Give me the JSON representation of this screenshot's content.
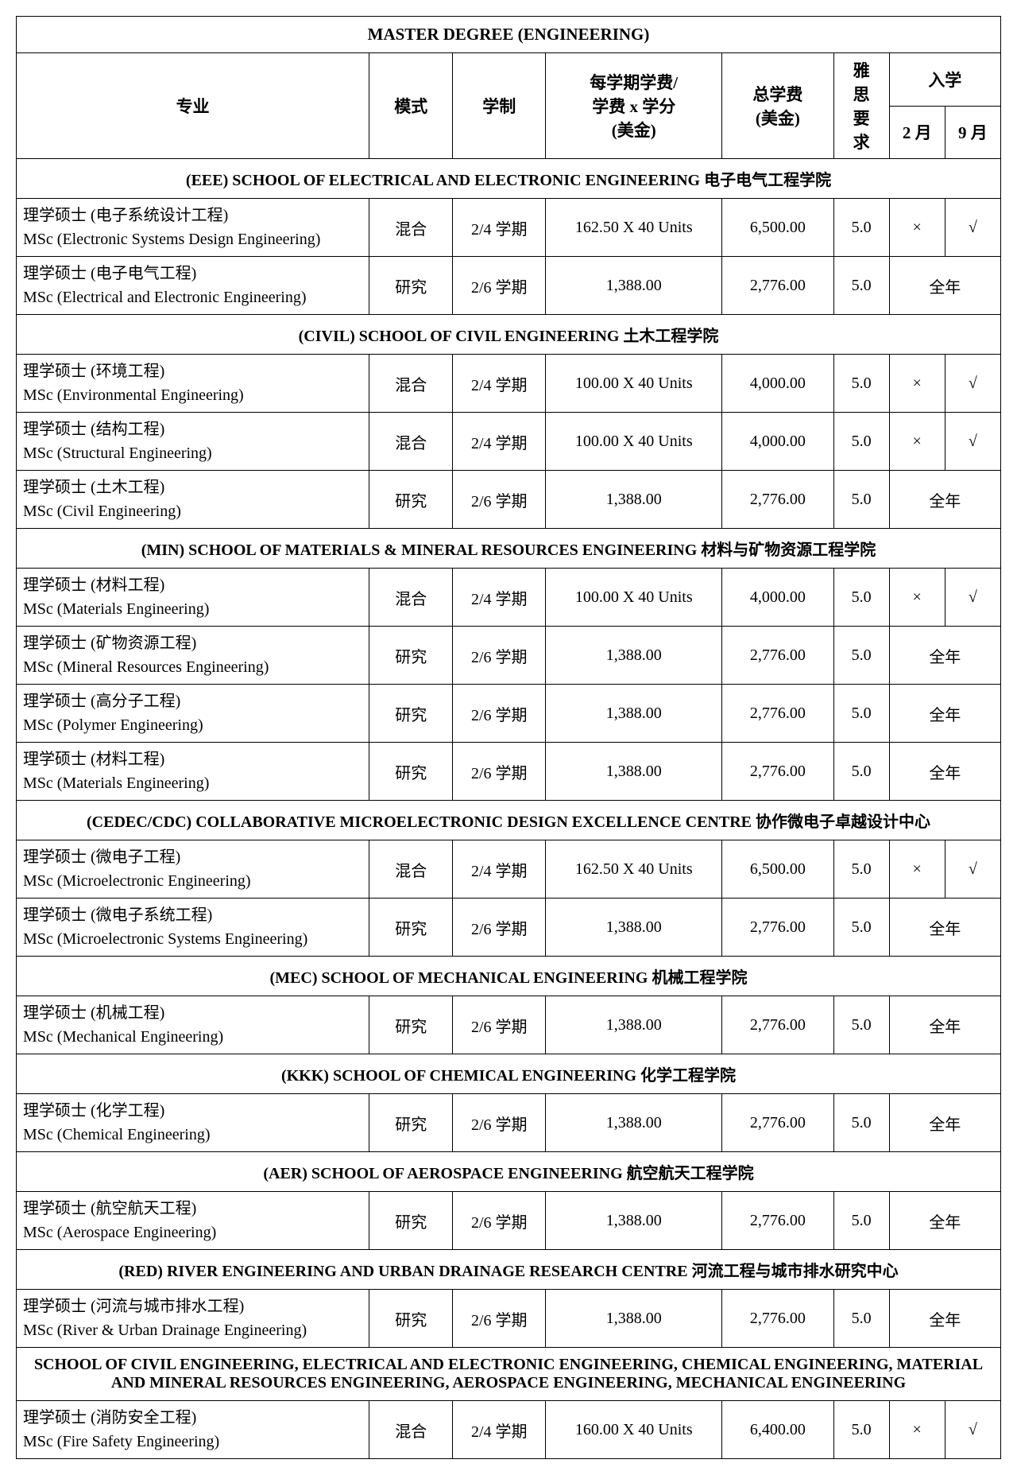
{
  "title": "MASTER DEGREE (ENGINEERING)",
  "headers": {
    "major": "专业",
    "mode": "模式",
    "duration": "学制",
    "fee_per_sem_line1": "每学期学费/",
    "fee_per_sem_line2": "学费 x 学分",
    "fee_per_sem_line3": "(美金)",
    "total_fee_line1": "总学费",
    "total_fee_line2": "(美金)",
    "ielts": "雅思要求",
    "intake": "入学",
    "feb": "2 月",
    "sep": "9 月"
  },
  "sections": [
    {
      "label": "(EEE) SCHOOL OF ELECTRICAL AND ELECTRONIC ENGINEERING  电子电气工程学院",
      "rows": [
        {
          "prog_cn": "理学硕士 (电子系统设计工程)",
          "prog_en": "MSc (Electronic Systems Design Engineering)",
          "mode": "混合",
          "dur": "2/4 学期",
          "fee": "162.50 X 40 Units",
          "total": "6,500.00",
          "ielts": "5.0",
          "feb": "×",
          "sep": "√",
          "full_year": false
        },
        {
          "prog_cn": "理学硕士 (电子电气工程)",
          "prog_en": "MSc (Electrical and Electronic Engineering)",
          "mode": "研究",
          "dur": "2/6 学期",
          "fee": "1,388.00",
          "total": "2,776.00",
          "ielts": "5.0",
          "full_year": true,
          "full_year_label": "全年"
        }
      ]
    },
    {
      "label": "(CIVIL) SCHOOL OF CIVIL ENGINEERING  土木工程学院",
      "rows": [
        {
          "prog_cn": "理学硕士 (环境工程)",
          "prog_en": "MSc (Environmental Engineering)",
          "mode": "混合",
          "dur": "2/4 学期",
          "fee": "100.00 X 40 Units",
          "total": "4,000.00",
          "ielts": "5.0",
          "feb": "×",
          "sep": "√",
          "full_year": false
        },
        {
          "prog_cn": "理学硕士 (结构工程)",
          "prog_en": "MSc (Structural Engineering)",
          "mode": "混合",
          "dur": "2/4 学期",
          "fee": "100.00 X 40 Units",
          "total": "4,000.00",
          "ielts": "5.0",
          "feb": "×",
          "sep": "√",
          "full_year": false
        },
        {
          "prog_cn": "理学硕士 (土木工程)",
          "prog_en": "MSc (Civil Engineering)",
          "mode": "研究",
          "dur": "2/6 学期",
          "fee": "1,388.00",
          "total": "2,776.00",
          "ielts": "5.0",
          "full_year": true,
          "full_year_label": "全年"
        }
      ]
    },
    {
      "label": "(MIN) SCHOOL OF MATERIALS & MINERAL RESOURCES ENGINEERING  材料与矿物资源工程学院",
      "rows": [
        {
          "prog_cn": "理学硕士 (材料工程)",
          "prog_en": "MSc (Materials Engineering)",
          "mode": "混合",
          "dur": "2/4 学期",
          "fee": "100.00 X 40 Units",
          "total": "4,000.00",
          "ielts": "5.0",
          "feb": "×",
          "sep": "√",
          "full_year": false
        },
        {
          "prog_cn": "理学硕士 (矿物资源工程)",
          "prog_en": "MSc (Mineral Resources Engineering)",
          "mode": "研究",
          "dur": "2/6 学期",
          "fee": "1,388.00",
          "total": "2,776.00",
          "ielts": "5.0",
          "full_year": true,
          "full_year_label": "全年"
        },
        {
          "prog_cn": "理学硕士 (高分子工程)",
          "prog_en": "MSc (Polymer Engineering)",
          "mode": "研究",
          "dur": "2/6 学期",
          "fee": "1,388.00",
          "total": "2,776.00",
          "ielts": "5.0",
          "full_year": true,
          "full_year_label": "全年"
        },
        {
          "prog_cn": "理学硕士 (材料工程)",
          "prog_en": "MSc (Materials Engineering)",
          "mode": "研究",
          "dur": "2/6 学期",
          "fee": "1,388.00",
          "total": "2,776.00",
          "ielts": "5.0",
          "full_year": true,
          "full_year_label": "全年"
        }
      ]
    },
    {
      "label": "(CEDEC/CDC) COLLABORATIVE MICROELECTRONIC DESIGN EXCELLENCE CENTRE  协作微电子卓越设计中心",
      "rows": [
        {
          "prog_cn": "理学硕士 (微电子工程)",
          "prog_en": "MSc (Microelectronic Engineering)",
          "mode": "混合",
          "dur": "2/4 学期",
          "fee": "162.50 X 40 Units",
          "total": "6,500.00",
          "ielts": "5.0",
          "feb": "×",
          "sep": "√",
          "full_year": false
        },
        {
          "prog_cn": "理学硕士 (微电子系统工程)",
          "prog_en": "MSc (Microelectronic Systems Engineering)",
          "mode": "研究",
          "dur": "2/6 学期",
          "fee": "1,388.00",
          "total": "2,776.00",
          "ielts": "5.0",
          "full_year": true,
          "full_year_label": "全年"
        }
      ]
    },
    {
      "label": "(MEC) SCHOOL OF MECHANICAL ENGINEERING  机械工程学院",
      "rows": [
        {
          "prog_cn": "理学硕士 (机械工程)",
          "prog_en": "MSc (Mechanical Engineering)",
          "mode": "研究",
          "dur": "2/6 学期",
          "fee": "1,388.00",
          "total": "2,776.00",
          "ielts": "5.0",
          "full_year": true,
          "full_year_label": "全年"
        }
      ]
    },
    {
      "label": "(KKK) SCHOOL OF CHEMICAL ENGINEERING  化学工程学院",
      "rows": [
        {
          "prog_cn": "理学硕士 (化学工程)",
          "prog_en": "MSc (Chemical Engineering)",
          "mode": "研究",
          "dur": "2/6 学期",
          "fee": "1,388.00",
          "total": "2,776.00",
          "ielts": "5.0",
          "full_year": true,
          "full_year_label": "全年"
        }
      ]
    },
    {
      "label": "(AER) SCHOOL OF AEROSPACE ENGINEERING  航空航天工程学院",
      "rows": [
        {
          "prog_cn": "理学硕士 (航空航天工程)",
          "prog_en": "MSc (Aerospace Engineering)",
          "mode": "研究",
          "dur": "2/6 学期",
          "fee": "1,388.00",
          "total": "2,776.00",
          "ielts": "5.0",
          "full_year": true,
          "full_year_label": "全年"
        }
      ]
    },
    {
      "label": "(RED) RIVER ENGINEERING AND URBAN DRAINAGE RESEARCH CENTRE  河流工程与城市排水研究中心",
      "rows": [
        {
          "prog_cn": "理学硕士 (河流与城市排水工程)",
          "prog_en": "MSc (River & Urban Drainage Engineering)",
          "mode": "研究",
          "dur": "2/6 学期",
          "fee": "1,388.00",
          "total": "2,776.00",
          "ielts": "5.0",
          "full_year": true,
          "full_year_label": "全年"
        }
      ]
    },
    {
      "label": "SCHOOL OF CIVIL ENGINEERING, ELECTRICAL AND ELECTRONIC ENGINEERING, CHEMICAL ENGINEERING, MATERIAL AND MINERAL RESOURCES ENGINEERING, AEROSPACE ENGINEERING, MECHANICAL ENGINEERING",
      "rows": [
        {
          "prog_cn": "理学硕士 (消防安全工程)",
          "prog_en": "MSc (Fire Safety Engineering)",
          "mode": "混合",
          "dur": "2/4 学期",
          "fee": "160.00 X 40 Units",
          "total": "6,400.00",
          "ielts": "5.0",
          "feb": "×",
          "sep": "√",
          "full_year": false
        }
      ]
    }
  ],
  "colwidths": {
    "major": 380,
    "mode": 90,
    "dur": 100,
    "fee": 190,
    "total": 120,
    "ielts": 60,
    "feb": 60,
    "sep": 60
  }
}
